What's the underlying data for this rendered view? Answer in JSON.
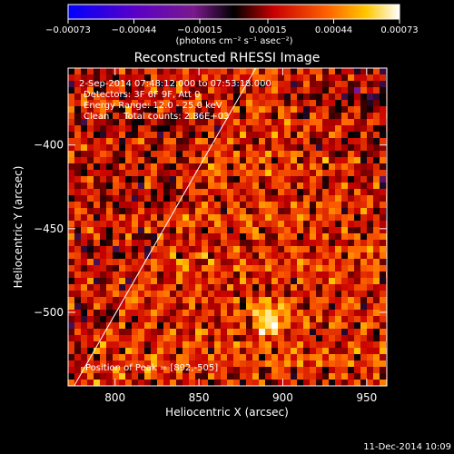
{
  "chart_data": {
    "type": "heatmap",
    "title": "Reconstructed RHESSI Image",
    "xlabel": "Heliocentric X (arcsec)",
    "ylabel": "Heliocentric Y (arcsec)",
    "xlim": [
      772,
      962
    ],
    "ylim": [
      -544,
      -354
    ],
    "x_ticks": [
      800,
      850,
      900,
      950
    ],
    "x_tick_labels": [
      "800",
      "850",
      "900",
      "950"
    ],
    "y_ticks": [
      -400,
      -450,
      -500
    ],
    "y_tick_labels": [
      "−400",
      "−450",
      "−500"
    ],
    "colorbar": {
      "range": [
        -0.00073,
        0.00073
      ],
      "ticks": [
        -0.00073,
        -0.00044,
        -0.00015,
        0.00015,
        0.00044,
        0.00073
      ],
      "tick_labels": [
        "−0.00073",
        "−0.00044",
        "−0.00015",
        "0.00015",
        "0.00044",
        "0.00073"
      ],
      "unit_label": "(photons cm⁻² s⁻¹ asec⁻²)",
      "colors": [
        "#0000ff",
        "#5a00c8",
        "#7a1a8c",
        "#000000",
        "#c80000",
        "#ff6000",
        "#ffc800",
        "#ffffff"
      ]
    },
    "peak": [
      892,
      -505
    ],
    "limb_line": [
      [
        775,
        -545
      ],
      [
        885,
        -352
      ]
    ],
    "annotations": [
      "2-Sep-2014 07:48:12.000 to 07:53:18.000",
      "Detectors: 3F 6F 9F, Att 0",
      "Energy Range: 12.0 - 25.0 keV",
      "Clean     Total counts: 2.86E+03",
      "Position of Peak = [892,-505]"
    ],
    "footer_date": "11-Dec-2014 10:09",
    "grid": false
  }
}
